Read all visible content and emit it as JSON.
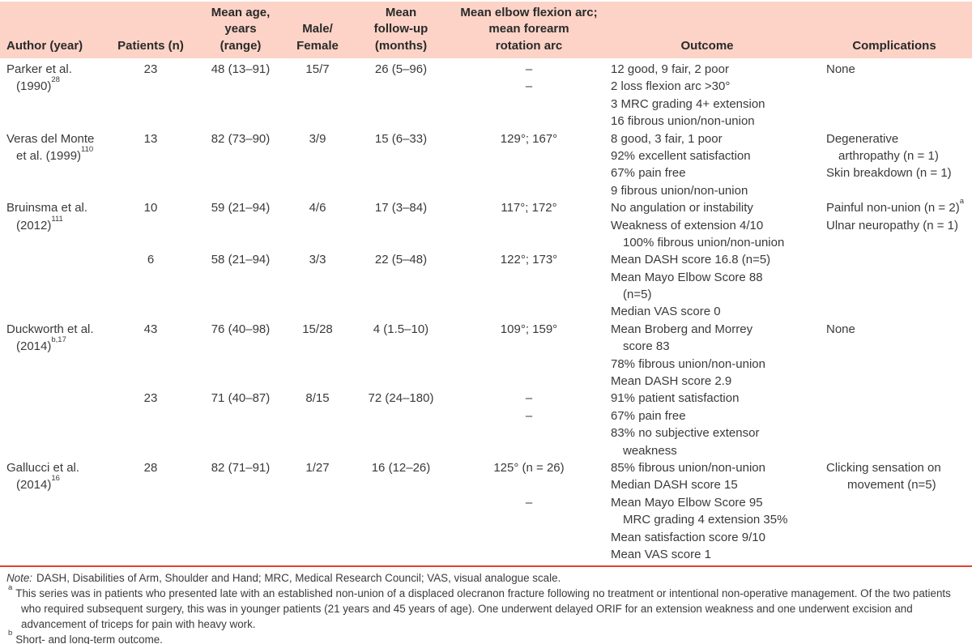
{
  "meta": {
    "header_bg_color": "#fcd3c6",
    "rule_color": "#e7402e",
    "text_color": "#3a3a3a"
  },
  "table": {
    "headers": {
      "author": [
        "Author (year)"
      ],
      "patients": [
        "Patients (n)"
      ],
      "age": [
        "Mean age,",
        "years",
        "(range)"
      ],
      "male_female": [
        "Male/",
        "Female"
      ],
      "follow_up": [
        "Mean",
        "follow-up",
        "(months)"
      ],
      "flexion": [
        "Mean elbow flexion arc;",
        "mean forearm",
        "rotation arc"
      ],
      "outcome": [
        "Outcome"
      ],
      "complications": [
        "Complications"
      ]
    },
    "rows": [
      {
        "author_lines": [
          {
            "text": "Parker et al."
          },
          {
            "text": "(1990)",
            "sup": "28",
            "indent": 1
          }
        ],
        "groups": [
          {
            "patients": "23",
            "age": "48 (13–91)",
            "male_female": "15/7",
            "follow_up": "26 (5–96)",
            "flexion": [
              {
                "text": "–"
              },
              {
                "text": "–"
              }
            ],
            "outcome": [
              {
                "text": "12 good, 9 fair, 2 poor"
              },
              {
                "text": "2 loss flexion arc >30°"
              },
              {
                "text": "3 MRC grading 4+ extension"
              },
              {
                "text": "16 fibrous union/non-union"
              }
            ],
            "complications": [
              {
                "text": "None"
              }
            ]
          }
        ]
      },
      {
        "author_lines": [
          {
            "text": "Veras del Monte"
          },
          {
            "text": "et al. (1999)",
            "sup": "110",
            "indent": 1
          }
        ],
        "groups": [
          {
            "patients": "13",
            "age": "82 (73–90)",
            "male_female": "3/9",
            "follow_up": "15 (6–33)",
            "flexion": [
              {
                "text": "129°; 167°"
              }
            ],
            "outcome": [
              {
                "text": "8 good, 3 fair, 1 poor"
              },
              {
                "text": "92% excellent satisfaction"
              },
              {
                "text": "67% pain free"
              },
              {
                "text": "9 fibrous union/non-union"
              }
            ],
            "complications": [
              {
                "text": "Degenerative"
              },
              {
                "text": "arthropathy (n = 1)",
                "indent": 1
              },
              {
                "text": "Skin breakdown (n = 1)"
              }
            ]
          }
        ]
      },
      {
        "author_lines": [
          {
            "text": "Bruinsma et al."
          },
          {
            "text": "(2012)",
            "sup": "111",
            "indent": 1
          }
        ],
        "groups": [
          {
            "patients": "10",
            "age": "59 (21–94)",
            "male_female": "4/6",
            "follow_up": "17 (3–84)",
            "flexion": [
              {
                "text": "117°; 172°"
              }
            ],
            "outcome": [
              {
                "text": "No angulation or instability"
              },
              {
                "text": "Weakness of extension 4/10"
              },
              {
                "text": "100% fibrous union/non-union",
                "indent": 1
              }
            ],
            "complications": [
              {
                "text": "Painful non-union (n = 2)",
                "sup": "a"
              },
              {
                "text": "Ulnar neuropathy (n = 1)"
              }
            ]
          },
          {
            "patients": "6",
            "age": "58 (21–94)",
            "male_female": "3/3",
            "follow_up": "22 (5–48)",
            "flexion": [
              {
                "text": "122°; 173°"
              }
            ],
            "outcome": [
              {
                "text": "Mean DASH score 16.8 (n=5)"
              },
              {
                "text": "Mean Mayo Elbow Score 88"
              },
              {
                "text": "(n=5)",
                "indent": 1
              },
              {
                "text": "Median VAS score 0"
              }
            ],
            "complications": []
          }
        ]
      },
      {
        "author_lines": [
          {
            "text": "Duckworth et al."
          },
          {
            "text": "(2014)",
            "sup": "b,17",
            "indent": 1
          }
        ],
        "groups": [
          {
            "patients": "43",
            "age": "76 (40–98)",
            "male_female": "15/28",
            "follow_up": "4 (1.5–10)",
            "flexion": [
              {
                "text": "109°; 159°"
              }
            ],
            "outcome": [
              {
                "text": "Mean Broberg and Morrey"
              },
              {
                "text": "score 83",
                "indent": 1
              },
              {
                "text": "78% fibrous union/non-union"
              },
              {
                "text": "Mean DASH score 2.9"
              }
            ],
            "complications": [
              {
                "text": "None"
              }
            ]
          },
          {
            "patients": "23",
            "age": "71 (40–87)",
            "male_female": "8/15",
            "follow_up": "72 (24–180)",
            "flexion": [
              {
                "text": "–"
              },
              {
                "text": "–"
              }
            ],
            "outcome": [
              {
                "text": "91% patient satisfaction"
              },
              {
                "text": "67% pain free"
              },
              {
                "text": "83% no subjective extensor"
              },
              {
                "text": "weakness",
                "indent": 1
              }
            ],
            "complications": []
          }
        ]
      },
      {
        "author_lines": [
          {
            "text": "Gallucci et al."
          },
          {
            "text": "(2014)",
            "sup": "16",
            "indent": 1
          }
        ],
        "groups": [
          {
            "patients": "28",
            "age": "82 (71–91)",
            "male_female": "1/27",
            "follow_up": "16 (12–26)",
            "flexion": [
              {
                "text": "125° (n = 26)"
              },
              {
                "text": ""
              },
              {
                "text": "–"
              }
            ],
            "outcome": [
              {
                "text": "85% fibrous union/non-union"
              },
              {
                "text": "Median DASH score 15"
              },
              {
                "text": "Mean Mayo Elbow Score 95"
              },
              {
                "text": "MRC grading 4 extension 35%",
                "indent": 1
              },
              {
                "text": "Mean satisfaction score 9/10"
              },
              {
                "text": "Mean VAS score 1"
              }
            ],
            "complications": [
              {
                "text": "Clicking sensation on"
              },
              {
                "text": "movement (n=5)",
                "indent": 2
              }
            ]
          }
        ]
      }
    ]
  },
  "footnotes": {
    "note_label": "Note:",
    "note_text": "DASH, Disabilities of Arm, Shoulder and Hand; MRC, Medical Research Council; VAS, visual analogue scale.",
    "items": [
      {
        "marker": "a",
        "text": "This series was in patients who presented late with an established non-union of a displaced olecranon fracture following no treatment or intentional non-operative management. Of the two patients who required subsequent surgery, this was in younger patients (21 years and 45 years of age). One underwent delayed ORIF for an extension weakness and one underwent excision and advancement of triceps for pain with heavy work."
      },
      {
        "marker": "b",
        "text": "Short- and long-term outcome."
      }
    ]
  }
}
